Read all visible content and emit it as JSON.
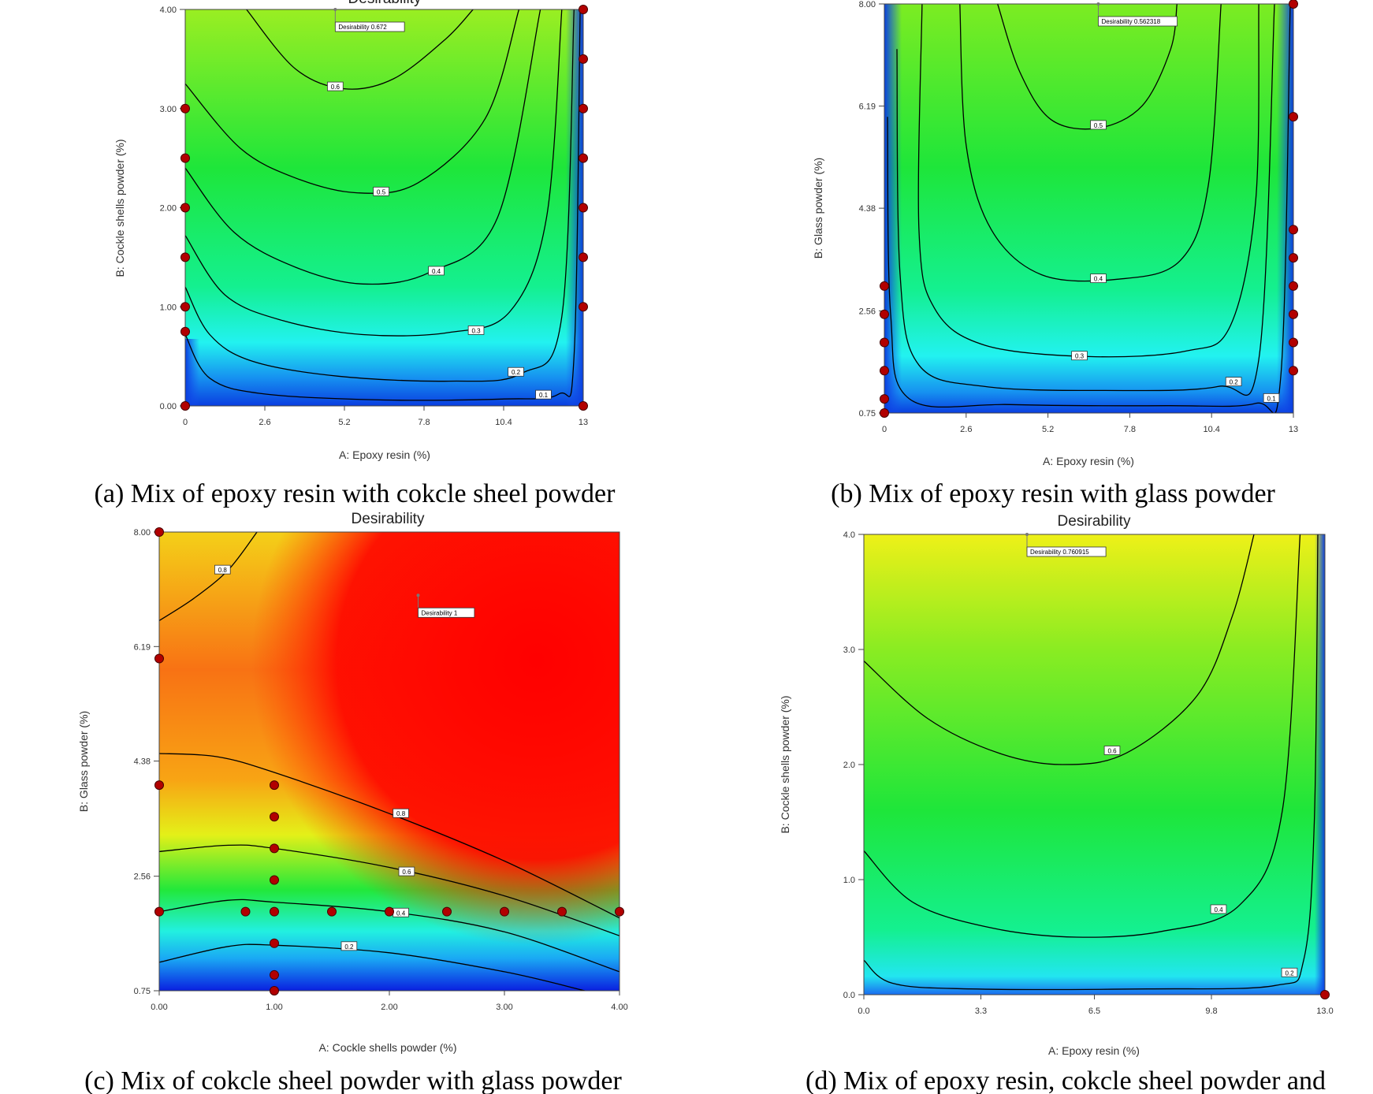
{
  "chart_data": [
    {
      "type": "heatmap",
      "subtype": "contour",
      "title": "Desirability",
      "caption": "(a) Mix of epoxy resin with cokcle sheel powder",
      "xlabel": "A: Epoxy resin (%)",
      "ylabel": "B: Cockle shells powder (%)",
      "xlim": [
        0,
        13
      ],
      "ylim": [
        0,
        4
      ],
      "xticks": [
        "0",
        "2.6",
        "5.2",
        "7.8",
        "10.4",
        "13"
      ],
      "yticks": [
        "0.00",
        "1.00",
        "2.00",
        "3.00",
        "4.00"
      ],
      "colorscale": "blue-cyan-green-yellow",
      "contours": [
        {
          "level": "0.6",
          "points": [
            [
              2.0,
              4.0
            ],
            [
              3.6,
              3.4
            ],
            [
              5.2,
              3.2
            ],
            [
              6.8,
              3.3
            ],
            [
              8.5,
              3.7
            ],
            [
              9.4,
              4.0
            ]
          ],
          "label_at": [
            4.9,
            3.22
          ]
        },
        {
          "level": "0.5",
          "points": [
            [
              0,
              3.25
            ],
            [
              1.8,
              2.6
            ],
            [
              3.6,
              2.3
            ],
            [
              5.6,
              2.15
            ],
            [
              7.6,
              2.25
            ],
            [
              9.8,
              2.9
            ],
            [
              10.9,
              4.0
            ]
          ],
          "label_at": [
            6.4,
            2.16
          ]
        },
        {
          "level": "0.4",
          "points": [
            [
              0,
              2.4
            ],
            [
              1.6,
              1.75
            ],
            [
              3.6,
              1.4
            ],
            [
              5.8,
              1.23
            ],
            [
              8.0,
              1.35
            ],
            [
              10.2,
              1.9
            ],
            [
              11.6,
              4.0
            ]
          ],
          "label_at": [
            8.2,
            1.36
          ]
        },
        {
          "level": "0.3",
          "points": [
            [
              0,
              1.72
            ],
            [
              1.3,
              1.12
            ],
            [
              3.2,
              0.86
            ],
            [
              5.8,
              0.72
            ],
            [
              8.6,
              0.74
            ],
            [
              10.6,
              0.95
            ],
            [
              11.8,
              1.9
            ],
            [
              12.3,
              4.0
            ]
          ],
          "label_at": [
            9.5,
            0.76
          ]
        },
        {
          "level": "0.2",
          "points": [
            [
              0,
              1.2
            ],
            [
              0.8,
              0.72
            ],
            [
              2.2,
              0.45
            ],
            [
              5.0,
              0.3
            ],
            [
              8.6,
              0.25
            ],
            [
              11.0,
              0.33
            ],
            [
              12.3,
              0.9
            ],
            [
              12.7,
              4.0
            ]
          ],
          "label_at": [
            10.8,
            0.34
          ]
        },
        {
          "level": "0.1",
          "points": [
            [
              0,
              0.72
            ],
            [
              0.8,
              0.28
            ],
            [
              2.6,
              0.12
            ],
            [
              6.5,
              0.06
            ],
            [
              10.4,
              0.07
            ],
            [
              12.2,
              0.12
            ],
            [
              12.7,
              0.5
            ],
            [
              12.9,
              4.0
            ]
          ],
          "label_at": [
            11.7,
            0.11
          ]
        }
      ],
      "design_points": [
        [
          0,
          0
        ],
        [
          0,
          0.75
        ],
        [
          0,
          1.0
        ],
        [
          0,
          1.5
        ],
        [
          0,
          2.0
        ],
        [
          0,
          2.5
        ],
        [
          0,
          3.0
        ],
        [
          13,
          0
        ],
        [
          13,
          1.0
        ],
        [
          13,
          1.5
        ],
        [
          13,
          2.0
        ],
        [
          13,
          2.5
        ],
        [
          13,
          3.0
        ],
        [
          13,
          3.5
        ],
        [
          13,
          4.0
        ]
      ],
      "annotation": {
        "text": "Desirability 0.672",
        "at": [
          4.9,
          4.0
        ]
      }
    },
    {
      "type": "heatmap",
      "subtype": "contour",
      "title": "",
      "caption": "(b) Mix of epoxy resin with glass powder",
      "xlabel": "A: Epoxy resin (%)",
      "ylabel": "B: Glass powder (%)",
      "xlim": [
        0,
        13
      ],
      "ylim": [
        0.75,
        8.0
      ],
      "xticks": [
        "0",
        "2.6",
        "5.2",
        "7.8",
        "10.4",
        "13"
      ],
      "yticks": [
        "0.75",
        "2.56",
        "4.38",
        "6.19",
        "8.00"
      ],
      "colorscale": "blue-cyan-green-yellow",
      "contours": [
        {
          "level": "0.5",
          "points": [
            [
              3.6,
              8.0
            ],
            [
              4.3,
              6.8
            ],
            [
              5.3,
              5.95
            ],
            [
              6.8,
              5.8
            ],
            [
              8.2,
              6.2
            ],
            [
              9.1,
              7.2
            ],
            [
              9.3,
              8.0
            ]
          ],
          "label_at": [
            6.8,
            5.85
          ]
        },
        {
          "level": "0.4",
          "points": [
            [
              2.4,
              8.0
            ],
            [
              2.6,
              5.5
            ],
            [
              3.4,
              4.0
            ],
            [
              5.0,
              3.2
            ],
            [
              7.4,
              3.12
            ],
            [
              9.4,
              3.45
            ],
            [
              10.3,
              4.8
            ],
            [
              10.7,
              8.0
            ]
          ],
          "label_at": [
            6.8,
            3.13
          ]
        },
        {
          "level": "0.3",
          "points": [
            [
              1.2,
              8.0
            ],
            [
              1.1,
              4.0
            ],
            [
              1.6,
              2.6
            ],
            [
              3.2,
              1.95
            ],
            [
              6.5,
              1.75
            ],
            [
              9.6,
              1.85
            ],
            [
              11.0,
              2.3
            ],
            [
              11.8,
              4.5
            ],
            [
              11.9,
              8.0
            ]
          ],
          "label_at": [
            6.2,
            1.76
          ]
        },
        {
          "level": "0.2",
          "points": [
            [
              0.4,
              7.2
            ],
            [
              0.5,
              3.2
            ],
            [
              1.1,
              1.6
            ],
            [
              3.2,
              1.22
            ],
            [
              7.0,
              1.15
            ],
            [
              10.6,
              1.22
            ],
            [
              11.9,
              1.7
            ],
            [
              12.4,
              8.0
            ]
          ],
          "label_at": [
            11.1,
            1.3
          ]
        },
        {
          "level": "0.1",
          "points": [
            [
              0.1,
              6.0
            ],
            [
              0.2,
              2.5
            ],
            [
              0.8,
              1.0
            ],
            [
              4.0,
              0.9
            ],
            [
              9.0,
              0.88
            ],
            [
              11.8,
              0.92
            ],
            [
              12.6,
              1.4
            ],
            [
              12.9,
              8.0
            ]
          ],
          "label_at": [
            12.3,
            1.01
          ]
        }
      ],
      "design_points": [
        [
          0,
          0.75
        ],
        [
          0,
          1.0
        ],
        [
          0,
          1.5
        ],
        [
          0,
          2.0
        ],
        [
          0,
          2.5
        ],
        [
          0,
          3.0
        ],
        [
          13,
          1.5
        ],
        [
          13,
          2.0
        ],
        [
          13,
          2.5
        ],
        [
          13,
          3.0
        ],
        [
          13,
          3.5
        ],
        [
          13,
          4.0
        ],
        [
          13,
          6.0
        ],
        [
          13,
          8.0
        ]
      ],
      "annotation": {
        "text": "Desirability 0.562318",
        "at": [
          6.8,
          8.0
        ]
      }
    },
    {
      "type": "heatmap",
      "subtype": "contour",
      "title": "Desirability",
      "caption": "(c) Mix of cokcle sheel powder with glass powder",
      "xlabel": "A: Cockle shells powder (%)",
      "ylabel": "B: Glass powder (%)",
      "xlim": [
        0,
        4
      ],
      "ylim": [
        0.75,
        8.0
      ],
      "xticks": [
        "0.00",
        "1.00",
        "2.00",
        "3.00",
        "4.00"
      ],
      "yticks": [
        "0.75",
        "2.56",
        "4.38",
        "6.19",
        "8.00"
      ],
      "colorscale": "blue-cyan-green-yellow-orange-red",
      "contours": [
        {
          "level": "0.8",
          "points": [
            [
              0,
              6.6
            ],
            [
              0.3,
              6.95
            ],
            [
              0.6,
              7.4
            ],
            [
              0.85,
              8.0
            ]
          ],
          "label_at": [
            0.55,
            7.4
          ]
        },
        {
          "level": "0.8",
          "points": [
            [
              0,
              4.5
            ],
            [
              0.5,
              4.45
            ],
            [
              1.0,
              4.2
            ],
            [
              2.0,
              3.55
            ],
            [
              3.0,
              2.8
            ],
            [
              4.0,
              1.9
            ]
          ],
          "label_at": [
            2.1,
            3.55
          ]
        },
        {
          "level": "0.6",
          "points": [
            [
              0,
              2.95
            ],
            [
              0.6,
              3.05
            ],
            [
              1.0,
              3.0
            ],
            [
              2.0,
              2.7
            ],
            [
              3.0,
              2.25
            ],
            [
              4.0,
              1.62
            ]
          ],
          "label_at": [
            2.15,
            2.63
          ]
        },
        {
          "level": "0.4",
          "points": [
            [
              0,
              2.0
            ],
            [
              0.6,
              2.18
            ],
            [
              1.0,
              2.15
            ],
            [
              2.0,
              2.0
            ],
            [
              3.0,
              1.68
            ],
            [
              4.0,
              1.05
            ]
          ],
          "label_at": [
            2.1,
            1.98
          ]
        },
        {
          "level": "0.2",
          "points": [
            [
              0,
              1.2
            ],
            [
              0.6,
              1.45
            ],
            [
              1.0,
              1.47
            ],
            [
              2.0,
              1.35
            ],
            [
              3.0,
              1.05
            ],
            [
              3.7,
              0.75
            ]
          ],
          "label_at": [
            1.65,
            1.45
          ]
        }
      ],
      "design_points": [
        [
          0,
          8.0
        ],
        [
          0,
          6.0
        ],
        [
          0,
          4.0
        ],
        [
          0,
          2.0
        ],
        [
          0.75,
          2.0
        ],
        [
          1.0,
          4.0
        ],
        [
          1.0,
          3.5
        ],
        [
          1.0,
          3.0
        ],
        [
          1.0,
          2.5
        ],
        [
          1.0,
          2.0
        ],
        [
          1.0,
          1.5
        ],
        [
          1.0,
          1.0
        ],
        [
          1.0,
          0.75
        ],
        [
          1.5,
          2.0
        ],
        [
          2.0,
          2.0
        ],
        [
          2.5,
          2.0
        ],
        [
          3.0,
          2.0
        ],
        [
          3.5,
          2.0
        ],
        [
          4.0,
          2.0
        ]
      ],
      "annotation": {
        "text": "Desirability 1",
        "at": [
          2.25,
          7.0
        ]
      }
    },
    {
      "type": "heatmap",
      "subtype": "contour",
      "title": "Desirability",
      "caption": "(d) Mix of epoxy resin, cokcle sheel powder and",
      "xlabel": "A: Epoxy resin (%)",
      "ylabel": "B: Cockle shells powder (%)",
      "xlim": [
        0,
        13
      ],
      "ylim": [
        0,
        4
      ],
      "xticks": [
        "0.0",
        "3.3",
        "6.5",
        "9.8",
        "13.0"
      ],
      "yticks": [
        "0.0",
        "1.0",
        "2.0",
        "3.0",
        "4.0"
      ],
      "colorscale": "blue-cyan-green-yellow",
      "contours": [
        {
          "level": "0.6",
          "points": [
            [
              0,
              2.9
            ],
            [
              1.8,
              2.4
            ],
            [
              3.8,
              2.1
            ],
            [
              5.6,
              2.0
            ],
            [
              7.4,
              2.1
            ],
            [
              9.4,
              2.6
            ],
            [
              10.4,
              3.3
            ],
            [
              11.0,
              4.0
            ]
          ],
          "label_at": [
            7.0,
            2.12
          ]
        },
        {
          "level": "0.4",
          "points": [
            [
              0,
              1.25
            ],
            [
              1.4,
              0.8
            ],
            [
              3.6,
              0.58
            ],
            [
              6.0,
              0.5
            ],
            [
              8.4,
              0.55
            ],
            [
              10.6,
              0.78
            ],
            [
              11.8,
              1.6
            ],
            [
              12.3,
              4.0
            ]
          ],
          "label_at": [
            10.0,
            0.74
          ]
        },
        {
          "level": "0.2",
          "points": [
            [
              0,
              0.3
            ],
            [
              0.8,
              0.1
            ],
            [
              3.0,
              0.05
            ],
            [
              8.0,
              0.05
            ],
            [
              11.6,
              0.08
            ],
            [
              12.4,
              0.3
            ],
            [
              12.7,
              1.5
            ],
            [
              12.8,
              4.0
            ]
          ],
          "label_at": [
            12.0,
            0.19
          ]
        }
      ],
      "design_points": [
        [
          13,
          0
        ]
      ],
      "annotation": {
        "text": "Desirability 0.760915",
        "at": [
          4.6,
          4.0
        ]
      }
    }
  ]
}
